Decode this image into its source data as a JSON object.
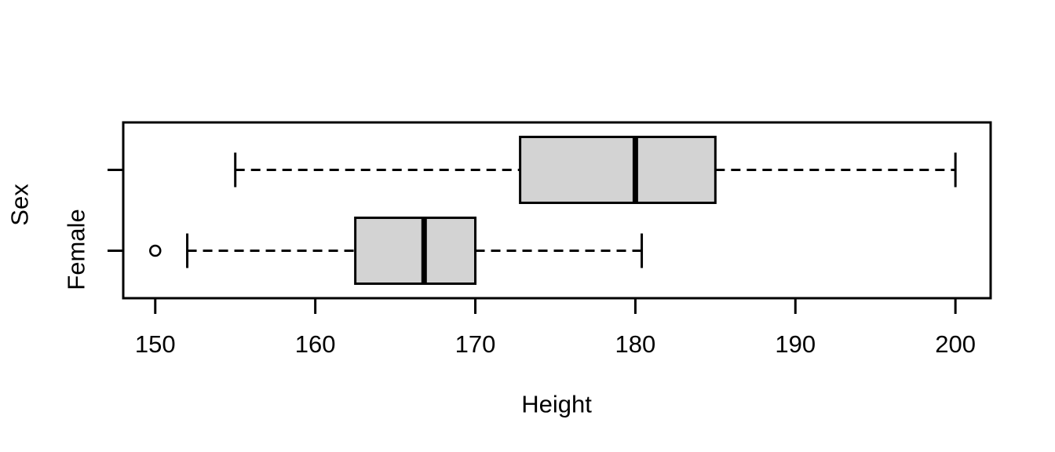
{
  "figure": {
    "background": "#ffffff"
  },
  "chart_data": {
    "type": "boxplot",
    "orientation": "horizontal",
    "title": "",
    "xlabel": "Height",
    "ylabel": "Sex",
    "xlim": [
      148,
      202.2
    ],
    "x_ticks": [
      150,
      160,
      170,
      180,
      190,
      200
    ],
    "x_tick_labels": [
      "150",
      "160",
      "170",
      "180",
      "190",
      "200"
    ],
    "grid": false,
    "legend": false,
    "style": {
      "box_fill": "#d3d3d3",
      "line_color": "#000000",
      "outlier_fill": "#ffffff"
    },
    "groups": [
      {
        "label": "",
        "lower_whisker": 155,
        "q1": 172.8,
        "median": 180,
        "q3": 185,
        "upper_whisker": 200,
        "outliers": []
      },
      {
        "label": "Female",
        "lower_whisker": 152,
        "q1": 162.5,
        "median": 166.8,
        "q3": 170,
        "upper_whisker": 180.4,
        "outliers": [
          150
        ]
      }
    ]
  }
}
